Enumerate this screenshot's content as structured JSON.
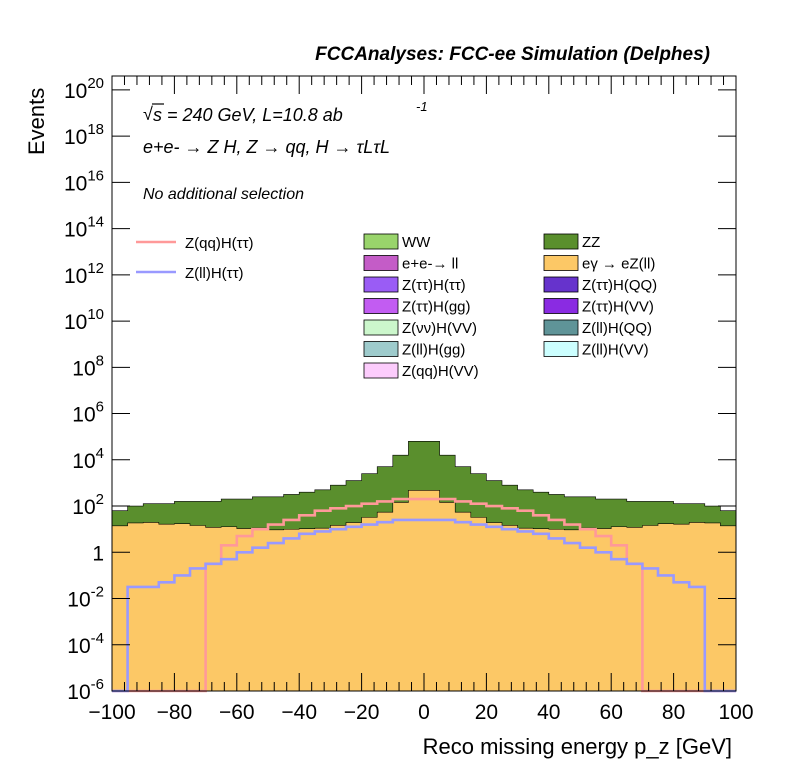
{
  "header": {
    "title": "FCCAnalyses: FCC-ee Simulation (Delphes)"
  },
  "annotations": {
    "sqrt_s": "s = 240 GeV, L=10.8 ab",
    "lumi_exp": "-1",
    "process": "e+e- → Z H, Z → qq, H → τLτL",
    "selection": "No additional selection"
  },
  "chart_data": {
    "type": "area",
    "subtype": "stacked-histogram",
    "xlabel": "Reco missing energy p_z [GeV]",
    "ylabel": "Events",
    "xlim": [
      -100,
      100
    ],
    "ylim_log10": [
      -6,
      20.6
    ],
    "log_y": true,
    "x_ticks": [
      "−100",
      "−80",
      "−60",
      "−40",
      "−20",
      "0",
      "20",
      "40",
      "60",
      "80",
      "100"
    ],
    "y_ticks": [
      "10^-6",
      "10^-4",
      "10^-2",
      "1",
      "10^2",
      "10^4",
      "10^6",
      "10^8",
      "10^10",
      "10^12",
      "10^14",
      "10^16",
      "10^18",
      "10^20"
    ],
    "legend_position": "upper-center",
    "stack_order_bottom_to_top": [
      "eγ → eZ(ll)",
      "Z(νν)H(VV)",
      "Z(ττ)H(QQ)",
      "Z(ττ)H(VV)",
      "Z(ττ)H(gg)",
      "Z(ll)H(VV)",
      "Z(qq)H(VV)",
      "Z(ll)H(gg)",
      "Z(ll)H(QQ)",
      "Z(ττ)H(ττ)",
      "e+e-→ ll",
      "WW",
      "ZZ"
    ],
    "stacked_series": [
      {
        "name": "WW",
        "color": "#99d46b"
      },
      {
        "name": "ZZ",
        "color": "#5a8f2d"
      },
      {
        "name": "e+e-→ ll",
        "color": "#c45cc7"
      },
      {
        "name": "eγ → eZ(ll)",
        "color": "#fcc866"
      },
      {
        "name": "Z(ττ)H(ττ)",
        "color": "#9a5cf5"
      },
      {
        "name": "Z(ττ)H(QQ)",
        "color": "#6633cc"
      },
      {
        "name": "Z(ττ)H(gg)",
        "color": "#c25cf2"
      },
      {
        "name": "Z(ττ)H(VV)",
        "color": "#8a2be2"
      },
      {
        "name": "Z(νν)H(VV)",
        "color": "#ccf7cc"
      },
      {
        "name": "Z(ll)H(QQ)",
        "color": "#5f9498"
      },
      {
        "name": "Z(ll)H(gg)",
        "color": "#9ecbcc"
      },
      {
        "name": "Z(ll)H(VV)",
        "color": "#ccffff"
      },
      {
        "name": "Z(qq)H(VV)",
        "color": "#fcccfc"
      }
    ],
    "line_series": [
      {
        "name": "Z(qq)H(ττ)",
        "color": "#ff9999"
      },
      {
        "name": "Z(ll)H(ττ)",
        "color": "#9999ff"
      }
    ],
    "bin_centers": [
      -97.5,
      -92.5,
      -87.5,
      -82.5,
      -77.5,
      -72.5,
      -67.5,
      -62.5,
      -57.5,
      -52.5,
      -47.5,
      -42.5,
      -37.5,
      -32.5,
      -27.5,
      -22.5,
      -17.5,
      -12.5,
      -7.5,
      -2.5,
      2.5,
      7.5,
      12.5,
      17.5,
      22.5,
      27.5,
      32.5,
      37.5,
      42.5,
      47.5,
      52.5,
      57.5,
      62.5,
      67.5,
      72.5,
      77.5,
      82.5,
      87.5,
      92.5,
      97.5
    ],
    "stack_top_log10": [
      1.8,
      2.0,
      2.1,
      2.1,
      2.2,
      2.2,
      2.2,
      2.3,
      2.3,
      2.4,
      2.4,
      2.5,
      2.6,
      2.7,
      2.9,
      3.1,
      3.4,
      3.7,
      4.2,
      4.8,
      4.8,
      4.2,
      3.7,
      3.4,
      3.1,
      2.9,
      2.7,
      2.6,
      2.5,
      2.4,
      2.4,
      2.3,
      2.3,
      2.2,
      2.2,
      2.2,
      2.1,
      2.1,
      2.0,
      1.8
    ],
    "zqq_htautau_log10": [
      -7,
      -7,
      -7,
      -7,
      -7,
      -7,
      -0.5,
      0.3,
      0.7,
      1.0,
      1.2,
      1.4,
      1.6,
      1.8,
      1.9,
      2.0,
      2.1,
      2.2,
      2.3,
      2.3,
      2.3,
      2.3,
      2.2,
      2.1,
      2.0,
      1.9,
      1.8,
      1.6,
      1.4,
      1.2,
      1.0,
      0.7,
      0.3,
      -0.5,
      -7,
      -7,
      -7,
      -7,
      -7,
      -7
    ],
    "zll_htautau_log10": [
      -7,
      -1.5,
      -1.5,
      -1.3,
      -1.0,
      -0.7,
      -0.5,
      -0.3,
      0,
      0.2,
      0.4,
      0.6,
      0.8,
      0.9,
      1.0,
      1.1,
      1.2,
      1.3,
      1.4,
      1.4,
      1.4,
      1.4,
      1.3,
      1.2,
      1.1,
      1.0,
      0.9,
      0.8,
      0.6,
      0.4,
      0.2,
      0,
      -0.3,
      -0.5,
      -0.7,
      -1.0,
      -1.3,
      -1.5,
      -7,
      -7
    ]
  },
  "legend_left": [
    "Z(qq)H(ττ)",
    "Z(ll)H(ττ)"
  ],
  "legend_mid": [
    "WW",
    "e+e-→ ll",
    "Z(ττ)H(ττ)",
    "Z(ττ)H(gg)",
    "Z(νν)H(VV)",
    "Z(ll)H(gg)",
    "Z(qq)H(VV)"
  ],
  "legend_right": [
    "ZZ",
    "eγ → eZ(ll)",
    "Z(ττ)H(QQ)",
    "Z(ττ)H(VV)",
    "Z(ll)H(QQ)",
    "Z(ll)H(VV)"
  ]
}
